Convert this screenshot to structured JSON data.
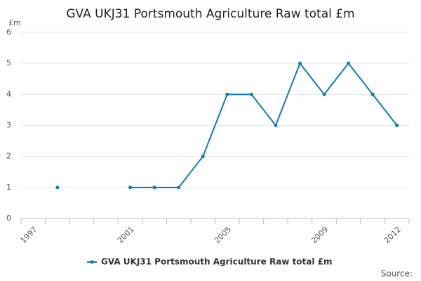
{
  "chart_data": {
    "type": "line",
    "title": "GVA UKJ31 Portsmouth Agriculture Raw total £m",
    "y_label": "£m",
    "categories": [
      "1997",
      null,
      null,
      null,
      "2001",
      null,
      null,
      null,
      "2005",
      null,
      null,
      null,
      "2009",
      null,
      null,
      "2012"
    ],
    "series": [
      {
        "name": "GVA UKJ31 Portsmouth Agriculture Raw total £m",
        "color": "#0f7bb5",
        "values": [
          null,
          1,
          null,
          null,
          1,
          1,
          1,
          2,
          4,
          4,
          3,
          5,
          4,
          5,
          4,
          3
        ]
      }
    ],
    "ylim": [
      0,
      6
    ],
    "yticks": [
      0,
      1,
      2,
      3,
      4,
      5,
      6
    ],
    "grid": true,
    "legend": "bottom",
    "source": "Source:"
  }
}
